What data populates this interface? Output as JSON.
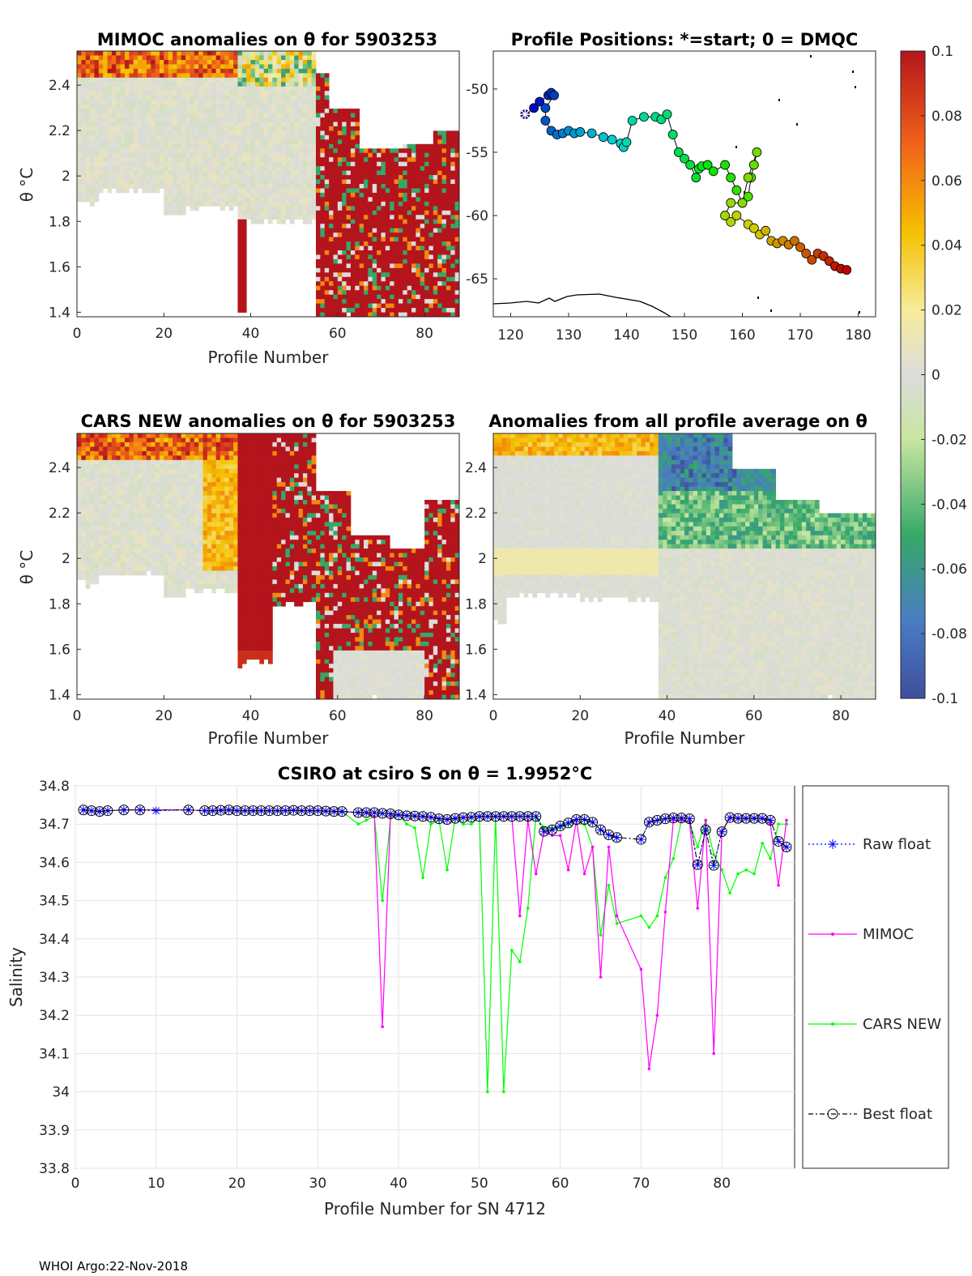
{
  "footer": "WHOI Argo:22-Nov-2018",
  "colors": {
    "mimoc": "#ff00ff",
    "cars": "#00ff00",
    "raw": "#0000ff",
    "best": "#000000"
  },
  "colorbar": {
    "ticks": [
      "0.1",
      "0.08",
      "0.06",
      "0.04",
      "0.02",
      "0",
      "-0.02",
      "-0.04",
      "-0.06",
      "-0.08",
      "-0.1"
    ],
    "range": [
      -0.1,
      0.1
    ]
  },
  "panels": {
    "mimoc": {
      "title": "MIMOC anomalies on θ  for 5903253",
      "xlabel": "Profile Number",
      "ylabel": "θ °C",
      "xticks": [
        "0",
        "20",
        "40",
        "60",
        "80"
      ],
      "yticks": [
        "2.4",
        "2.2",
        "2",
        "1.8",
        "1.6",
        "1.4"
      ]
    },
    "map": {
      "title": "Profile Positions: *=start; 0 = DMQC",
      "xticks": [
        "120",
        "130",
        "140",
        "150",
        "160",
        "170",
        "180"
      ],
      "yticks": [
        "-50",
        "-55",
        "-60",
        "-65"
      ]
    },
    "cars": {
      "title": "CARS NEW anomalies on θ for 5903253",
      "xlabel": "Profile Number",
      "ylabel": "θ °C",
      "xticks": [
        "0",
        "20",
        "40",
        "60",
        "80"
      ],
      "yticks": [
        "2.4",
        "2.2",
        "2",
        "1.8",
        "1.6",
        "1.4"
      ]
    },
    "avg": {
      "title": "Anomalies from all profile average on θ",
      "xlabel": "Profile Number",
      "xticks": [
        "0",
        "20",
        "40",
        "60",
        "80"
      ],
      "yticks": [
        "2.4",
        "2.2",
        "2",
        "1.8",
        "1.6",
        "1.4"
      ]
    }
  },
  "chart_data": [
    {
      "type": "heatmap",
      "title": "MIMOC anomalies on θ  for 5903253",
      "xlabel": "Profile Number",
      "ylabel": "θ °C",
      "xlim": [
        0,
        88
      ],
      "ylim": [
        1.38,
        2.55
      ],
      "regions": [
        {
          "x": [
            0,
            37
          ],
          "value": 0.0,
          "note": "mostly near zero, warm (0.05-0.1) near 2.45-2.55"
        },
        {
          "x": [
            38,
            55
          ],
          "value": 0.0,
          "note": "mixed small anomalies, some negative near top"
        },
        {
          "x": [
            55,
            88
          ],
          "value": 0.1,
          "note": "strong positive anomalies below 2.2"
        }
      ]
    },
    {
      "type": "scatter",
      "title": "Profile Positions: *=start; 0 = DMQC",
      "xlim": [
        117,
        183
      ],
      "ylim": [
        -68,
        -47
      ],
      "lon": [
        122.5,
        124,
        125,
        126.5,
        127,
        127.5,
        126,
        126,
        127,
        128,
        129,
        130,
        131,
        132,
        134,
        136,
        137.5,
        139,
        139.5,
        140,
        141,
        143,
        145,
        146,
        147,
        148,
        149,
        150,
        151,
        152,
        152.5,
        153,
        154,
        155,
        157,
        158,
        159,
        160,
        161,
        161.5,
        162,
        162.5,
        161,
        160,
        158,
        157,
        158,
        159,
        161,
        162,
        163,
        164,
        165,
        166,
        167,
        168,
        169,
        170,
        171,
        172,
        173,
        174,
        175,
        176,
        177,
        178
      ],
      "lat": [
        -52,
        -51.5,
        -51,
        -50.5,
        -50.3,
        -50.5,
        -51.5,
        -52.5,
        -53.3,
        -53.6,
        -53.5,
        -53.3,
        -53.5,
        -53.4,
        -53.5,
        -53.8,
        -54,
        -54.3,
        -54.6,
        -54.2,
        -52.5,
        -52.2,
        -52.2,
        -52.4,
        -52,
        -53.6,
        -55,
        -55.5,
        -56,
        -57,
        -56.3,
        -56.1,
        -56,
        -56.5,
        -56,
        -57,
        -58,
        -59,
        -58.5,
        -57,
        -56,
        -55,
        -57,
        -59,
        -59,
        -60,
        -60.5,
        -60,
        -60.7,
        -61,
        -61.5,
        -61.2,
        -62,
        -62.2,
        -62,
        -62.3,
        -62,
        -62.5,
        -63,
        -63.5,
        -63,
        -63.2,
        -63.6,
        -64,
        -64.2,
        -64.3
      ],
      "start": [
        122.5,
        -52
      ]
    },
    {
      "type": "heatmap",
      "title": "CARS NEW anomalies on θ for 5903253",
      "xlabel": "Profile Number",
      "ylabel": "θ °C",
      "xlim": [
        0,
        88
      ],
      "ylim": [
        1.38,
        2.55
      ],
      "regions": [
        {
          "x": [
            0,
            35
          ],
          "value": 0.0,
          "note": "near zero, warm 0.04-0.06 at 2.45-2.55"
        },
        {
          "x": [
            35,
            45
          ],
          "value": 0.1,
          "note": "strong positive column"
        },
        {
          "x": [
            45,
            88
          ],
          "value": 0.1,
          "note": "strong positive anomalies, patchy"
        }
      ]
    },
    {
      "type": "heatmap",
      "title": "Anomalies from all profile average on θ",
      "xlabel": "Profile Number",
      "xlim": [
        0,
        88
      ],
      "ylim": [
        1.38,
        2.55
      ],
      "regions": [
        {
          "x": [
            0,
            38
          ],
          "value": 0.01,
          "note": "near zero, slight positive 1.95-2.05"
        },
        {
          "x": [
            38,
            88
          ],
          "value": -0.06,
          "note": "negative anomalies 2.1-2.55, strongest -0.1 near profile 45-55"
        }
      ]
    },
    {
      "type": "line",
      "title": "CSIRO at csiro S on θ = 1.9952°C",
      "xlabel": "Profile Number for SN 4712",
      "ylabel": "Salinity",
      "xlim": [
        0,
        89
      ],
      "ylim": [
        33.8,
        34.8
      ],
      "xticks": [
        "0",
        "10",
        "20",
        "30",
        "40",
        "50",
        "60",
        "70",
        "80"
      ],
      "yticks": [
        "34.8",
        "34.7",
        "34.6",
        "34.5",
        "34.4",
        "34.3",
        "34.2",
        "34.1",
        "34",
        "33.9",
        "33.8"
      ],
      "legend": [
        "Raw float",
        "MIMOC",
        "CARS NEW",
        "Best float"
      ],
      "legend_position": "right",
      "series": [
        {
          "name": "Raw float",
          "x": [
            1,
            2,
            3,
            4,
            6,
            8,
            10,
            14,
            16,
            17,
            18,
            19,
            20,
            21,
            22,
            23,
            24,
            25,
            26,
            27,
            28,
            29,
            30,
            31,
            32,
            33,
            35,
            36,
            37,
            38,
            39,
            40,
            41,
            42,
            43,
            44,
            45,
            46,
            47,
            48,
            49,
            50,
            51,
            52,
            53,
            54,
            55,
            56,
            57,
            58,
            59,
            60,
            61,
            62,
            63,
            64,
            65,
            66,
            67,
            70,
            71,
            72,
            73,
            74,
            75,
            76,
            77,
            78,
            79,
            80,
            81,
            82,
            83,
            84,
            85,
            86,
            87,
            88
          ],
          "y": [
            34.737,
            34.735,
            34.733,
            34.735,
            34.737,
            34.737,
            34.735,
            34.737,
            34.735,
            34.735,
            34.736,
            34.737,
            34.735,
            34.735,
            34.735,
            34.735,
            34.735,
            34.735,
            34.735,
            34.736,
            34.735,
            34.735,
            34.735,
            34.734,
            34.733,
            34.733,
            34.73,
            34.73,
            34.73,
            34.728,
            34.727,
            34.724,
            34.722,
            34.721,
            34.72,
            34.718,
            34.714,
            34.712,
            34.715,
            34.717,
            34.718,
            34.72,
            34.72,
            34.72,
            34.72,
            34.72,
            34.72,
            34.72,
            34.72,
            34.681,
            34.685,
            34.695,
            34.703,
            34.712,
            34.712,
            34.705,
            34.685,
            34.672,
            34.665,
            34.66,
            34.705,
            34.71,
            34.714,
            34.716,
            34.716,
            34.714,
            34.594,
            34.685,
            34.592,
            34.68,
            34.717,
            34.715,
            34.715,
            34.715,
            34.715,
            34.71,
            34.655,
            34.64
          ]
        },
        {
          "name": "MIMOC",
          "x": [
            1,
            2,
            3,
            4,
            6,
            8,
            14,
            16,
            17,
            18,
            19,
            20,
            21,
            22,
            23,
            24,
            25,
            26,
            27,
            28,
            29,
            30,
            31,
            32,
            33,
            35,
            36,
            37,
            38,
            39,
            40,
            41,
            42,
            43,
            44,
            45,
            46,
            47,
            48,
            49,
            50,
            51,
            52,
            53,
            54,
            55,
            56,
            57,
            58,
            59,
            60,
            61,
            62,
            63,
            64,
            65,
            66,
            67,
            70,
            71,
            72,
            73,
            74,
            75,
            76,
            77,
            78,
            79,
            80,
            81,
            82,
            83,
            84,
            85,
            86,
            87,
            88
          ],
          "y": [
            34.737,
            34.735,
            34.733,
            34.735,
            34.737,
            34.737,
            34.737,
            34.735,
            34.735,
            34.736,
            34.737,
            34.735,
            34.735,
            34.735,
            34.735,
            34.735,
            34.735,
            34.735,
            34.736,
            34.735,
            34.735,
            34.735,
            34.734,
            34.733,
            34.733,
            34.73,
            34.73,
            34.72,
            34.17,
            34.72,
            34.725,
            34.722,
            34.721,
            34.72,
            34.718,
            34.714,
            34.712,
            34.715,
            34.717,
            34.718,
            34.72,
            34.72,
            34.72,
            34.72,
            34.72,
            34.46,
            34.71,
            34.57,
            34.681,
            34.67,
            34.67,
            34.58,
            34.71,
            34.57,
            34.64,
            34.3,
            34.64,
            34.46,
            34.32,
            34.06,
            34.2,
            34.47,
            34.71,
            34.71,
            34.705,
            34.48,
            34.71,
            34.1,
            34.68,
            34.717,
            34.715,
            34.715,
            34.715,
            34.715,
            34.7,
            34.54,
            34.71
          ]
        },
        {
          "name": "CARS NEW",
          "x": [
            1,
            2,
            3,
            4,
            6,
            8,
            14,
            16,
            17,
            18,
            19,
            20,
            21,
            22,
            23,
            24,
            25,
            26,
            27,
            28,
            29,
            30,
            31,
            32,
            33,
            35,
            36,
            37,
            38,
            39,
            40,
            41,
            42,
            43,
            44,
            45,
            46,
            47,
            48,
            49,
            50,
            51,
            52,
            53,
            54,
            55,
            56,
            57,
            58,
            59,
            60,
            61,
            62,
            63,
            64,
            65,
            66,
            67,
            70,
            71,
            72,
            73,
            74,
            75,
            76,
            77,
            78,
            79,
            80,
            81,
            82,
            83,
            84,
            85,
            86,
            87,
            88
          ],
          "y": [
            34.737,
            34.735,
            34.733,
            34.735,
            34.737,
            34.737,
            34.737,
            34.735,
            34.735,
            34.736,
            34.737,
            34.735,
            34.735,
            34.735,
            34.735,
            34.735,
            34.735,
            34.735,
            34.736,
            34.735,
            34.735,
            34.735,
            34.734,
            34.733,
            34.733,
            34.7,
            34.71,
            34.72,
            34.5,
            34.715,
            34.725,
            34.7,
            34.69,
            34.56,
            34.7,
            34.71,
            34.58,
            34.715,
            34.7,
            34.7,
            34.72,
            34.0,
            34.72,
            34.0,
            34.37,
            34.34,
            34.48,
            34.72,
            34.69,
            34.69,
            34.69,
            34.7,
            34.7,
            34.7,
            34.64,
            34.41,
            34.54,
            34.44,
            34.46,
            34.43,
            34.46,
            34.56,
            34.61,
            34.71,
            34.705,
            34.64,
            34.71,
            34.62,
            34.58,
            34.52,
            34.57,
            34.58,
            34.57,
            34.65,
            34.61,
            34.7,
            34.7
          ]
        },
        {
          "name": "Best float",
          "x": [
            1,
            2,
            3,
            4,
            6,
            8,
            14,
            16,
            17,
            18,
            19,
            20,
            21,
            22,
            23,
            24,
            25,
            26,
            27,
            28,
            29,
            30,
            31,
            32,
            33,
            35,
            36,
            37,
            38,
            39,
            40,
            41,
            42,
            43,
            44,
            45,
            46,
            47,
            48,
            49,
            50,
            51,
            52,
            53,
            54,
            55,
            56,
            57,
            58,
            59,
            60,
            61,
            62,
            63,
            64,
            65,
            66,
            67,
            70,
            71,
            72,
            73,
            74,
            75,
            76,
            77,
            78,
            79,
            80,
            81,
            82,
            83,
            84,
            85,
            86,
            87,
            88
          ],
          "y": [
            34.737,
            34.735,
            34.733,
            34.735,
            34.737,
            34.737,
            34.737,
            34.735,
            34.735,
            34.736,
            34.737,
            34.735,
            34.735,
            34.735,
            34.735,
            34.735,
            34.735,
            34.735,
            34.736,
            34.735,
            34.735,
            34.735,
            34.734,
            34.733,
            34.733,
            34.73,
            34.73,
            34.73,
            34.728,
            34.727,
            34.724,
            34.722,
            34.721,
            34.72,
            34.718,
            34.714,
            34.712,
            34.715,
            34.717,
            34.718,
            34.72,
            34.72,
            34.72,
            34.72,
            34.72,
            34.72,
            34.72,
            34.72,
            34.681,
            34.685,
            34.695,
            34.703,
            34.712,
            34.712,
            34.705,
            34.685,
            34.672,
            34.665,
            34.66,
            34.705,
            34.71,
            34.714,
            34.716,
            34.716,
            34.714,
            34.594,
            34.685,
            34.592,
            34.68,
            34.717,
            34.715,
            34.715,
            34.715,
            34.715,
            34.71,
            34.655,
            34.64
          ]
        }
      ]
    }
  ]
}
